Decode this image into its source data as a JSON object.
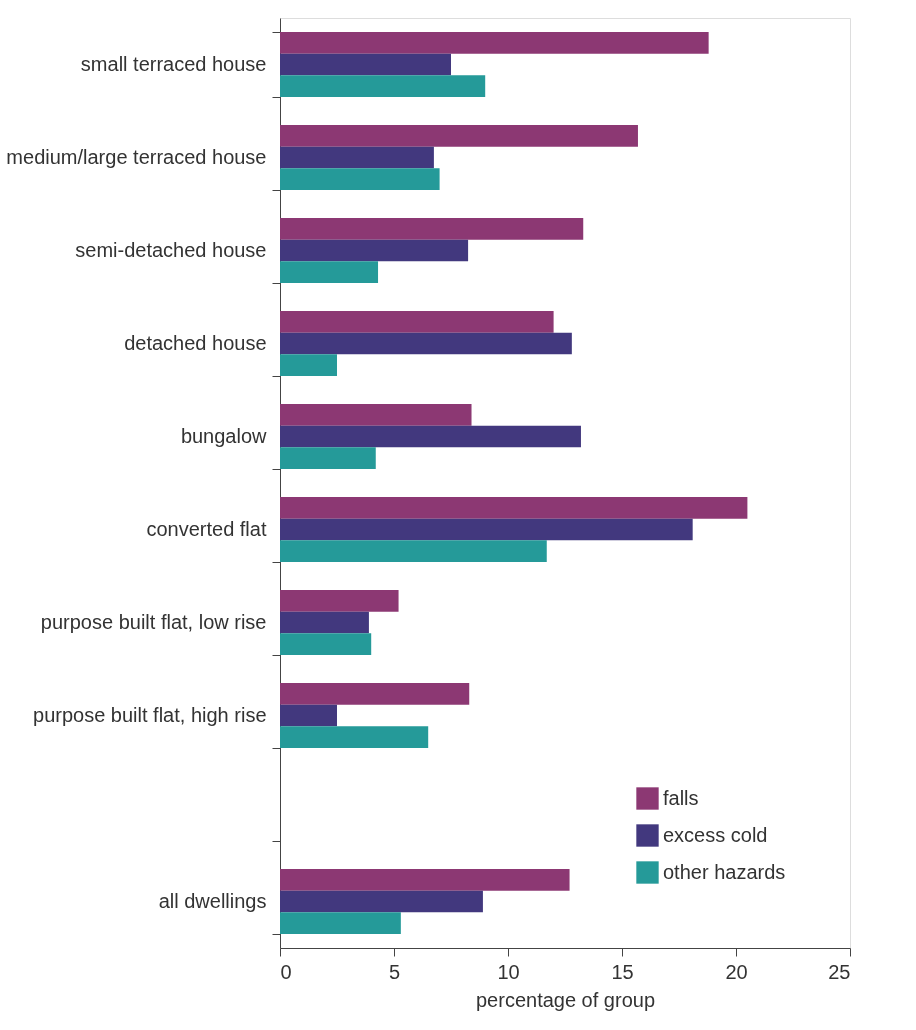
{
  "chart_data": {
    "type": "bar",
    "orientation": "horizontal",
    "categories": [
      "small terraced house",
      "medium/large terraced house",
      "semi-detached house",
      "detached house",
      "bungalow",
      "converted flat",
      "purpose built flat, low rise",
      "purpose built flat, high rise",
      null,
      "all dwellings"
    ],
    "series": [
      {
        "name": "falls",
        "color": "#8c3873",
        "values": [
          18.8,
          15.7,
          13.3,
          12.0,
          8.4,
          20.5,
          5.2,
          8.3,
          null,
          12.7
        ]
      },
      {
        "name": "excess cold",
        "color": "#42387e",
        "values": [
          7.5,
          6.75,
          8.25,
          12.8,
          13.2,
          18.1,
          3.9,
          2.5,
          null,
          8.9
        ]
      },
      {
        "name": "other hazards",
        "color": "#259a99",
        "values": [
          9.0,
          7.0,
          4.3,
          2.5,
          4.2,
          11.7,
          4.0,
          6.5,
          null,
          5.3
        ]
      }
    ],
    "xlabel": "percentage of group",
    "xlim": [
      0,
      25
    ],
    "xticks": [
      0,
      5,
      10,
      15,
      20,
      25
    ],
    "legend": "bottom right"
  }
}
